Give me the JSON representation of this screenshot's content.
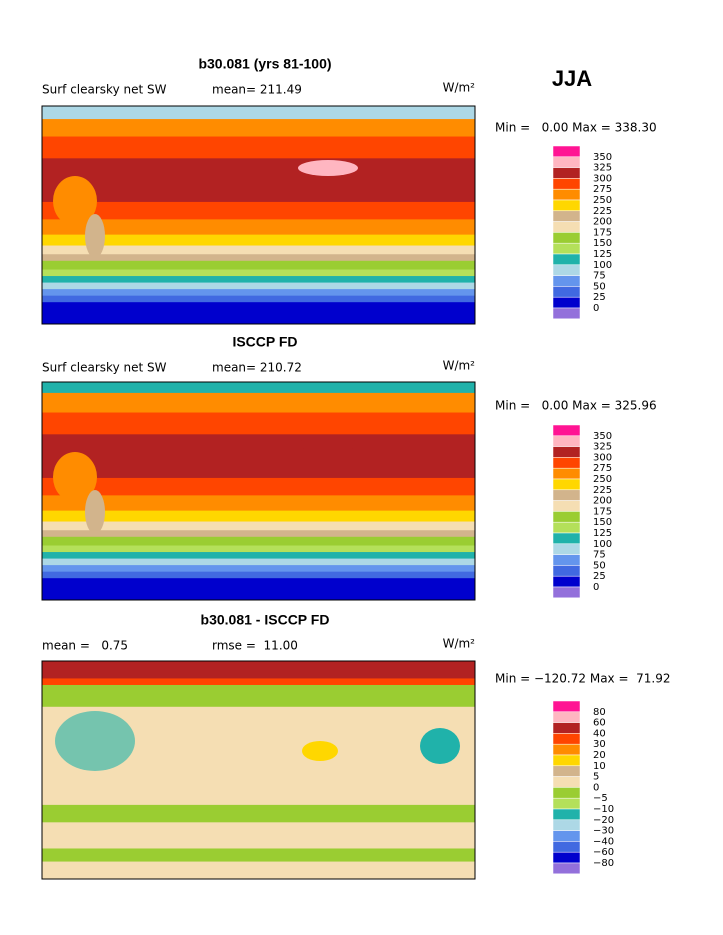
{
  "page_title": "JJA",
  "panels": [
    {
      "title": "b30.081 (yrs 81-100)",
      "left_label": "Surf clearsky net SW",
      "center_label": "mean= 211.49",
      "units": "W/m²",
      "range_text": "Min =   0.00 Max = 338.30",
      "colorbar": {
        "labels": [
          "350",
          "325",
          "300",
          "275",
          "250",
          "225",
          "200",
          "175",
          "150",
          "125",
          "100",
          "75",
          "50",
          "25",
          "0"
        ],
        "colors": [
          "#ff1493",
          "#ffb6c1",
          "#b22222",
          "#ff4500",
          "#ff8c00",
          "#ffd700",
          "#d2b48c",
          "#f5deb3",
          "#9acd32",
          "#b4e05a",
          "#20b2aa",
          "#add8e6",
          "#6495ed",
          "#4169e1",
          "#0000cd",
          "#9370db"
        ]
      }
    },
    {
      "title": "ISCCP FD",
      "left_label": "Surf clearsky net SW",
      "center_label": "mean= 210.72",
      "units": "W/m²",
      "range_text": "Min =   0.00 Max = 325.96",
      "colorbar": {
        "labels": [
          "350",
          "325",
          "300",
          "275",
          "250",
          "225",
          "200",
          "175",
          "150",
          "125",
          "100",
          "75",
          "50",
          "25",
          "0"
        ],
        "colors": [
          "#ff1493",
          "#ffb6c1",
          "#b22222",
          "#ff4500",
          "#ff8c00",
          "#ffd700",
          "#d2b48c",
          "#f5deb3",
          "#9acd32",
          "#b4e05a",
          "#20b2aa",
          "#add8e6",
          "#6495ed",
          "#4169e1",
          "#0000cd",
          "#9370db"
        ]
      }
    },
    {
      "title": "b30.081 - ISCCP FD",
      "left_label": "mean =   0.75",
      "center_label": "rmse =  11.00",
      "units": "W/m²",
      "range_text": "Min = −120.72 Max =  71.92",
      "colorbar": {
        "labels": [
          "80",
          "60",
          "40",
          "30",
          "20",
          "10",
          "5",
          "0",
          "−5",
          "−10",
          "−20",
          "−30",
          "−40",
          "−60",
          "−80"
        ],
        "colors": [
          "#ff1493",
          "#ffb6c1",
          "#b22222",
          "#ff4500",
          "#ff8c00",
          "#ffd700",
          "#d2b48c",
          "#f5deb3",
          "#9acd32",
          "#b4e05a",
          "#20b2aa",
          "#add8e6",
          "#6495ed",
          "#4169e1",
          "#0000cd",
          "#9370db"
        ]
      }
    }
  ]
}
